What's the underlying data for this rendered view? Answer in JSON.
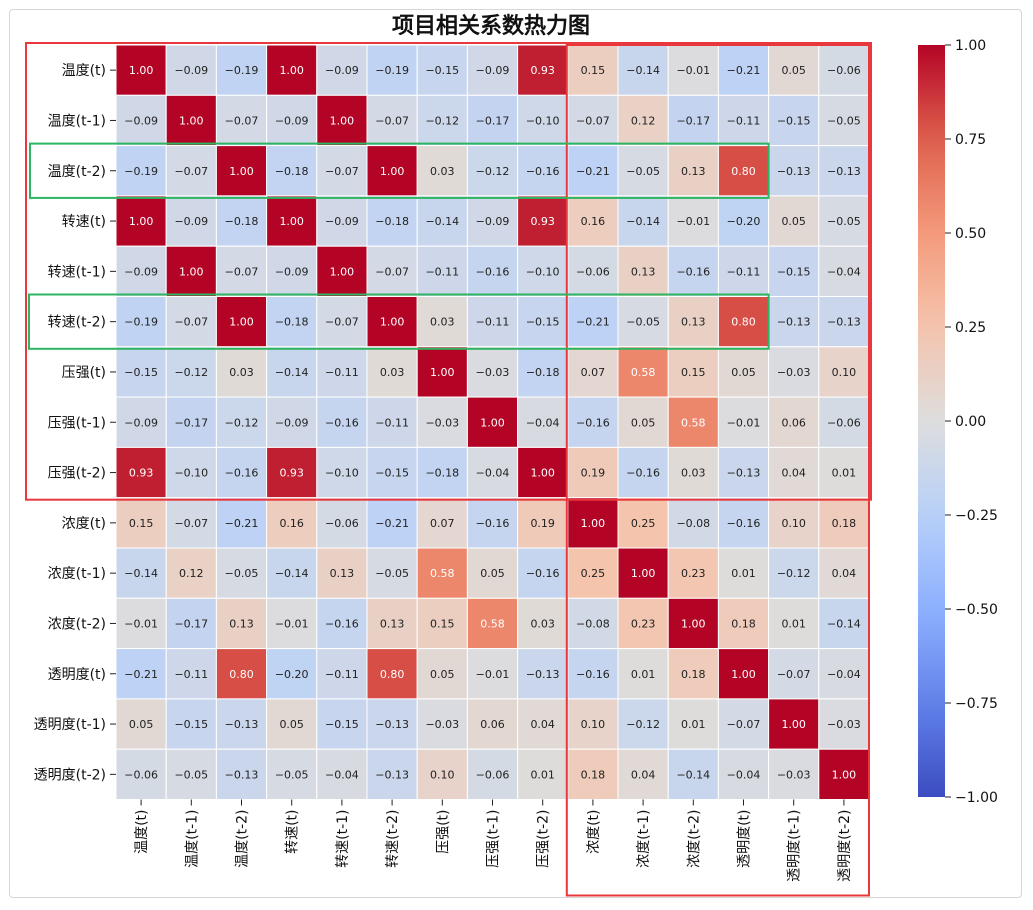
{
  "chart_data": {
    "type": "heatmap",
    "title": "项目相关系数热力图",
    "labels": [
      "温度(t)",
      "温度(t-1)",
      "温度(t-2)",
      "转速(t)",
      "转速(t-1)",
      "转速(t-2)",
      "压强(t)",
      "压强(t-1)",
      "压强(t-2)",
      "浓度(t)",
      "浓度(t-1)",
      "浓度(t-2)",
      "透明度(t)",
      "透明度(t-1)",
      "透明度(t-2)"
    ],
    "matrix": [
      [
        1.0,
        -0.09,
        -0.19,
        1.0,
        -0.09,
        -0.19,
        -0.15,
        -0.09,
        0.93,
        0.15,
        -0.14,
        -0.01,
        -0.21,
        0.05,
        -0.06
      ],
      [
        -0.09,
        1.0,
        -0.07,
        -0.09,
        1.0,
        -0.07,
        -0.12,
        -0.17,
        -0.1,
        -0.07,
        0.12,
        -0.17,
        -0.11,
        -0.15,
        -0.05
      ],
      [
        -0.19,
        -0.07,
        1.0,
        -0.18,
        -0.07,
        1.0,
        0.03,
        -0.12,
        -0.16,
        -0.21,
        -0.05,
        0.13,
        0.8,
        -0.13,
        -0.13
      ],
      [
        1.0,
        -0.09,
        -0.18,
        1.0,
        -0.09,
        -0.18,
        -0.14,
        -0.09,
        0.93,
        0.16,
        -0.14,
        -0.01,
        -0.2,
        0.05,
        -0.05
      ],
      [
        -0.09,
        1.0,
        -0.07,
        -0.09,
        1.0,
        -0.07,
        -0.11,
        -0.16,
        -0.1,
        -0.06,
        0.13,
        -0.16,
        -0.11,
        -0.15,
        -0.04
      ],
      [
        -0.19,
        -0.07,
        1.0,
        -0.18,
        -0.07,
        1.0,
        0.03,
        -0.11,
        -0.15,
        -0.21,
        -0.05,
        0.13,
        0.8,
        -0.13,
        -0.13
      ],
      [
        -0.15,
        -0.12,
        0.03,
        -0.14,
        -0.11,
        0.03,
        1.0,
        -0.03,
        -0.18,
        0.07,
        0.58,
        0.15,
        0.05,
        -0.03,
        0.1
      ],
      [
        -0.09,
        -0.17,
        -0.12,
        -0.09,
        -0.16,
        -0.11,
        -0.03,
        1.0,
        -0.04,
        -0.16,
        0.05,
        0.58,
        -0.01,
        0.06,
        -0.06
      ],
      [
        0.93,
        -0.1,
        -0.16,
        0.93,
        -0.1,
        -0.15,
        -0.18,
        -0.04,
        1.0,
        0.19,
        -0.16,
        0.03,
        -0.13,
        0.04,
        0.01
      ],
      [
        0.15,
        -0.07,
        -0.21,
        0.16,
        -0.06,
        -0.21,
        0.07,
        -0.16,
        0.19,
        1.0,
        0.25,
        -0.08,
        -0.16,
        0.1,
        0.18
      ],
      [
        -0.14,
        0.12,
        -0.05,
        -0.14,
        0.13,
        -0.05,
        0.58,
        0.05,
        -0.16,
        0.25,
        1.0,
        0.23,
        0.01,
        -0.12,
        0.04
      ],
      [
        -0.01,
        -0.17,
        0.13,
        -0.01,
        -0.16,
        0.13,
        0.15,
        0.58,
        0.03,
        -0.08,
        0.23,
        1.0,
        0.18,
        0.01,
        -0.14
      ],
      [
        -0.21,
        -0.11,
        0.8,
        -0.2,
        -0.11,
        0.8,
        0.05,
        -0.01,
        -0.13,
        -0.16,
        0.01,
        0.18,
        1.0,
        -0.07,
        -0.04
      ],
      [
        0.05,
        -0.15,
        -0.13,
        0.05,
        -0.15,
        -0.13,
        -0.03,
        0.06,
        0.04,
        0.1,
        -0.12,
        0.01,
        -0.07,
        1.0,
        -0.03
      ],
      [
        -0.06,
        -0.05,
        -0.13,
        -0.05,
        -0.04,
        -0.13,
        0.1,
        -0.06,
        0.01,
        0.18,
        0.04,
        -0.14,
        -0.04,
        -0.03,
        1.0
      ]
    ],
    "value_format": "2 decimals",
    "colormap": "coolwarm",
    "vmin": -1.0,
    "vmax": 1.0,
    "colorbar_ticks": [
      "1.00",
      "0.75",
      "0.50",
      "0.25",
      "0.00",
      "−0.25",
      "−0.50",
      "−0.75",
      "−1.00"
    ],
    "colorbar_tick_values": [
      1.0,
      0.75,
      0.5,
      0.25,
      0.0,
      -0.25,
      -0.5,
      -0.75,
      -1.0
    ],
    "colorbar_placement": "right",
    "highlights": [
      {
        "color": "#e8383d",
        "rows": [
          0,
          8
        ],
        "cols": [
          0,
          14
        ]
      },
      {
        "color": "#e8383d",
        "rows": [
          0,
          14
        ],
        "cols": [
          9,
          14
        ]
      },
      {
        "color": "#2db561",
        "rows": [
          2,
          2
        ],
        "cols": [
          0,
          12
        ]
      },
      {
        "color": "#2db561",
        "rows": [
          5,
          5
        ],
        "cols": [
          0,
          12
        ]
      }
    ]
  }
}
